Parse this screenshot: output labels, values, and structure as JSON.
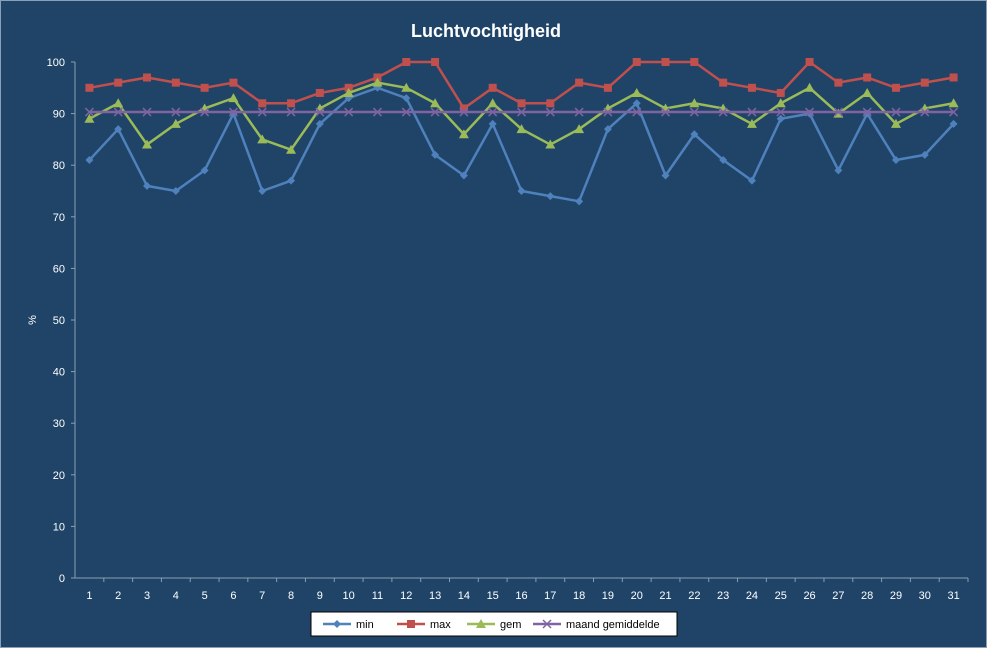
{
  "chart_data": {
    "type": "line",
    "title": "Luchtvochtigheid",
    "xlabel": "",
    "ylabel": "%",
    "ylim": [
      0,
      100
    ],
    "yticks": [
      0,
      10,
      20,
      30,
      40,
      50,
      60,
      70,
      80,
      90,
      100
    ],
    "categories": [
      "1",
      "2",
      "3",
      "4",
      "5",
      "6",
      "7",
      "8",
      "9",
      "10",
      "11",
      "12",
      "13",
      "14",
      "15",
      "16",
      "17",
      "18",
      "19",
      "20",
      "21",
      "22",
      "23",
      "24",
      "25",
      "26",
      "27",
      "28",
      "29",
      "30",
      "31"
    ],
    "grid": false,
    "legend_position": "bottom",
    "background": "#1f4468",
    "series": [
      {
        "name": "min",
        "color": "#4f81bd",
        "marker": "diamond",
        "values": [
          81,
          87,
          76,
          75,
          79,
          90,
          75,
          77,
          88,
          93,
          95,
          93,
          82,
          78,
          88,
          75,
          74,
          73,
          87,
          92,
          78,
          86,
          81,
          77,
          89,
          90,
          79,
          90,
          81,
          82,
          88
        ]
      },
      {
        "name": "max",
        "color": "#c0504d",
        "marker": "square",
        "values": [
          95,
          96,
          97,
          96,
          95,
          96,
          92,
          92,
          94,
          95,
          97,
          100,
          100,
          91,
          95,
          92,
          92,
          96,
          95,
          100,
          100,
          100,
          96,
          95,
          94,
          100,
          96,
          97,
          95,
          96,
          97
        ]
      },
      {
        "name": "gem",
        "color": "#9bbb59",
        "marker": "triangle",
        "values": [
          89,
          92,
          84,
          88,
          91,
          93,
          85,
          83,
          91,
          94,
          96,
          95,
          92,
          86,
          92,
          87,
          84,
          87,
          91,
          94,
          91,
          92,
          91,
          88,
          92,
          95,
          90,
          94,
          88,
          91,
          92
        ]
      },
      {
        "name": "maand gemiddelde",
        "color": "#8064a2",
        "marker": "x",
        "values": [
          90.3,
          90.3,
          90.3,
          90.3,
          90.3,
          90.3,
          90.3,
          90.3,
          90.3,
          90.3,
          90.3,
          90.3,
          90.3,
          90.3,
          90.3,
          90.3,
          90.3,
          90.3,
          90.3,
          90.3,
          90.3,
          90.3,
          90.3,
          90.3,
          90.3,
          90.3,
          90.3,
          90.3,
          90.3,
          90.3,
          90.3
        ]
      }
    ]
  }
}
